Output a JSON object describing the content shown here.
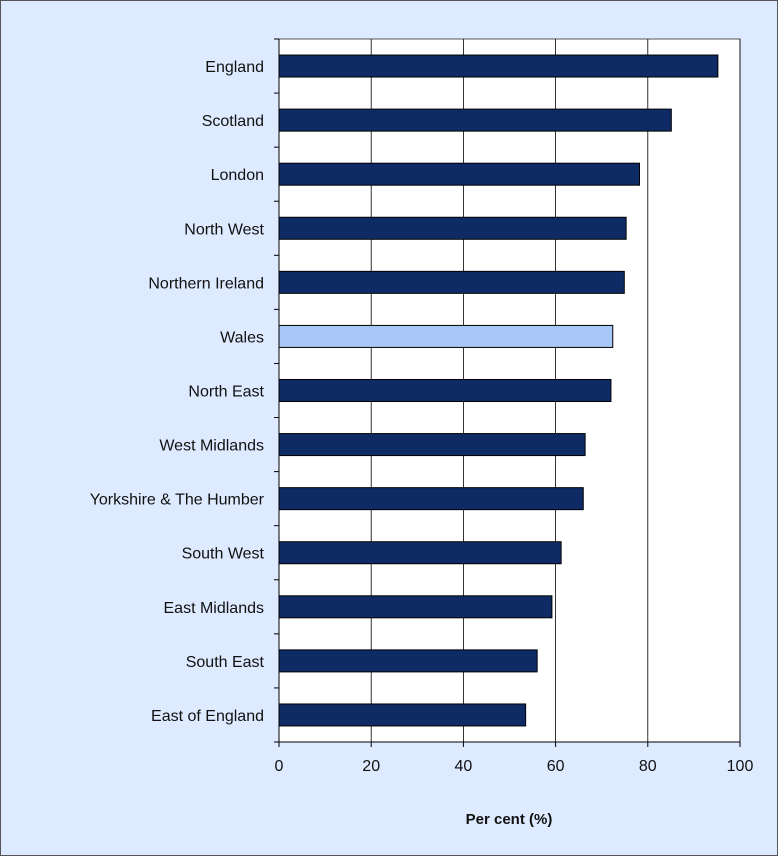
{
  "chart_data": {
    "type": "bar",
    "orientation": "horizontal",
    "categories": [
      "England",
      "Scotland",
      "London",
      "North West",
      "Northern Ireland",
      "Wales",
      "North East",
      "West Midlands",
      "Yorkshire & The Humber",
      "South West",
      "East Midlands",
      "South East",
      "East of England"
    ],
    "values": [
      95.2,
      85.1,
      78.2,
      75.3,
      74.9,
      72.4,
      72.0,
      66.4,
      66.0,
      61.2,
      59.2,
      56.0,
      53.5
    ],
    "highlight_category": "Wales",
    "xlabel": "Per cent (%)",
    "xlim": [
      0,
      100
    ],
    "xticks": [
      0,
      20,
      40,
      60,
      80,
      100
    ],
    "grid": "vertical",
    "colors": {
      "bar": "#0f2b66",
      "highlight": "#a8c8f8",
      "plot_background": "#ffffff",
      "chart_background": "#ddeaff",
      "gridline": "#000000"
    }
  }
}
